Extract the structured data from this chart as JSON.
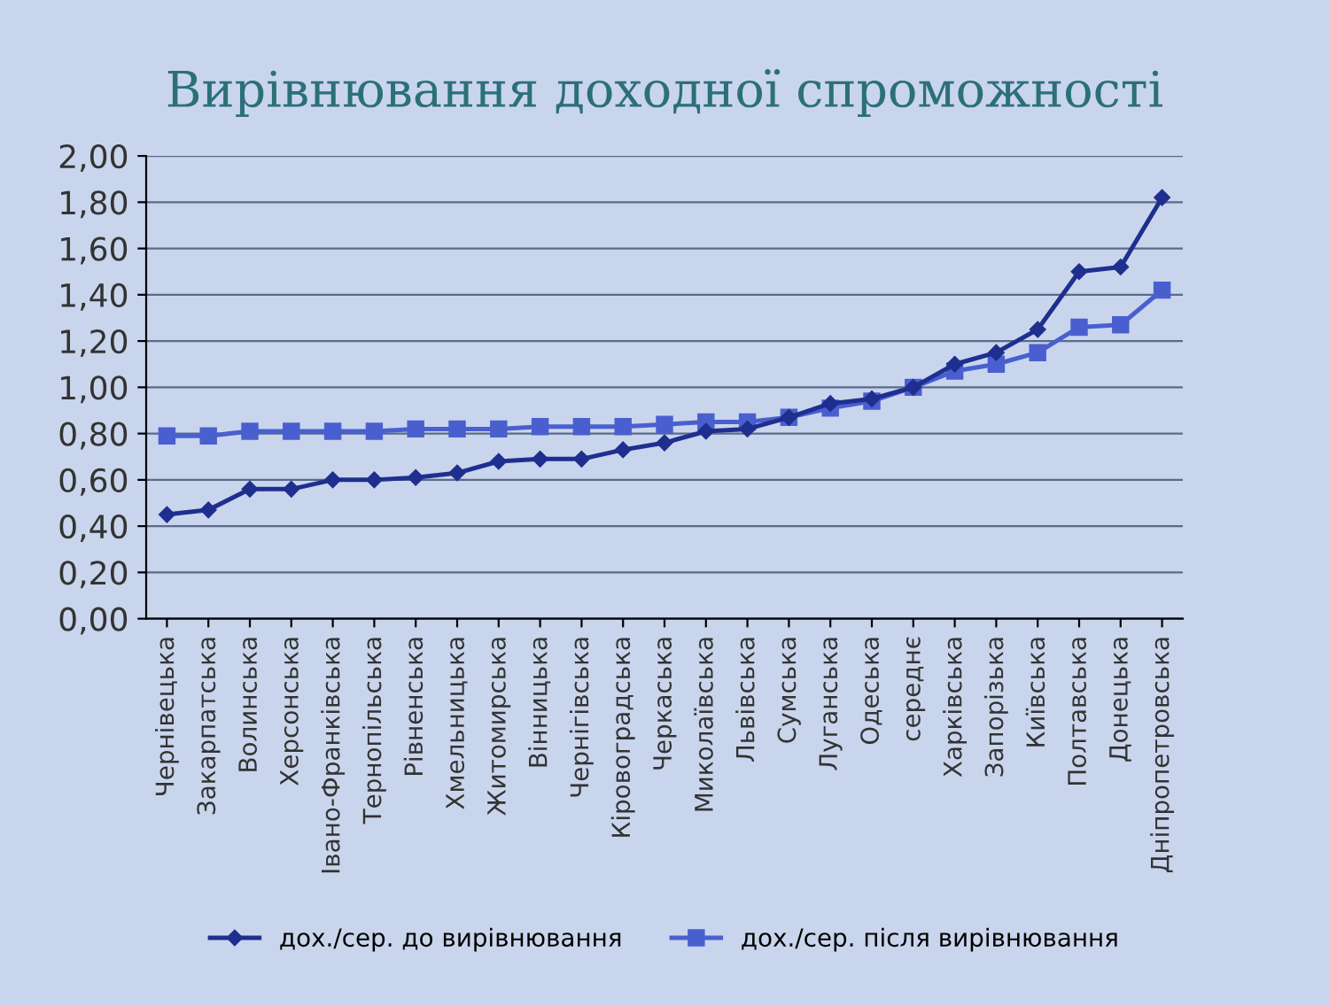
{
  "chart_data": {
    "type": "line",
    "title": "Вирівнювання доходної спроможності",
    "categories": [
      "Чернівецька",
      "Закарпатська",
      "Волинська",
      "Херсонська",
      "Івано-Франківська",
      "Тернопільська",
      "Рівненська",
      "Хмельницька",
      "Житомирська",
      "Вінницька",
      "Чернігівська",
      "Кіровоградська",
      "Черкаська",
      "Миколаївська",
      "Львівська",
      "Сумська",
      "Луганська",
      "Одеська",
      "середнє",
      "Харківська",
      "Запорізька",
      "Київська",
      "Полтавська",
      "Донецька",
      "Дніпропетровська"
    ],
    "series": [
      {
        "name": "дох./сер. до вирівнювання",
        "color": "#1f2f8f",
        "marker": "diamond",
        "values": [
          0.45,
          0.47,
          0.56,
          0.56,
          0.6,
          0.6,
          0.61,
          0.63,
          0.68,
          0.69,
          0.69,
          0.73,
          0.76,
          0.81,
          0.82,
          0.87,
          0.93,
          0.95,
          1.0,
          1.1,
          1.15,
          1.25,
          1.5,
          1.52,
          1.82
        ]
      },
      {
        "name": "дох./сер. після вирівнювання",
        "color": "#4a5fcf",
        "marker": "square",
        "values": [
          0.79,
          0.79,
          0.81,
          0.81,
          0.81,
          0.81,
          0.82,
          0.82,
          0.82,
          0.83,
          0.83,
          0.83,
          0.84,
          0.85,
          0.85,
          0.87,
          0.91,
          0.94,
          1.0,
          1.07,
          1.1,
          1.15,
          1.26,
          1.27,
          1.42
        ]
      }
    ],
    "ylim": [
      0,
      2
    ],
    "yticks": [
      {
        "value": 0,
        "label": "0,00"
      },
      {
        "value": 0.2,
        "label": "0,20"
      },
      {
        "value": 0.4,
        "label": "0,40"
      },
      {
        "value": 0.6,
        "label": "0,60"
      },
      {
        "value": 0.8,
        "label": "0,80"
      },
      {
        "value": 1.0,
        "label": "1,00"
      },
      {
        "value": 1.2,
        "label": "1,20"
      },
      {
        "value": 1.4,
        "label": "1,40"
      },
      {
        "value": 1.6,
        "label": "1,60"
      },
      {
        "value": 1.8,
        "label": "1,80"
      },
      {
        "value": 2.0,
        "label": "2,00"
      }
    ],
    "grid": "y",
    "legend": "bottom",
    "line_style": "solid"
  }
}
